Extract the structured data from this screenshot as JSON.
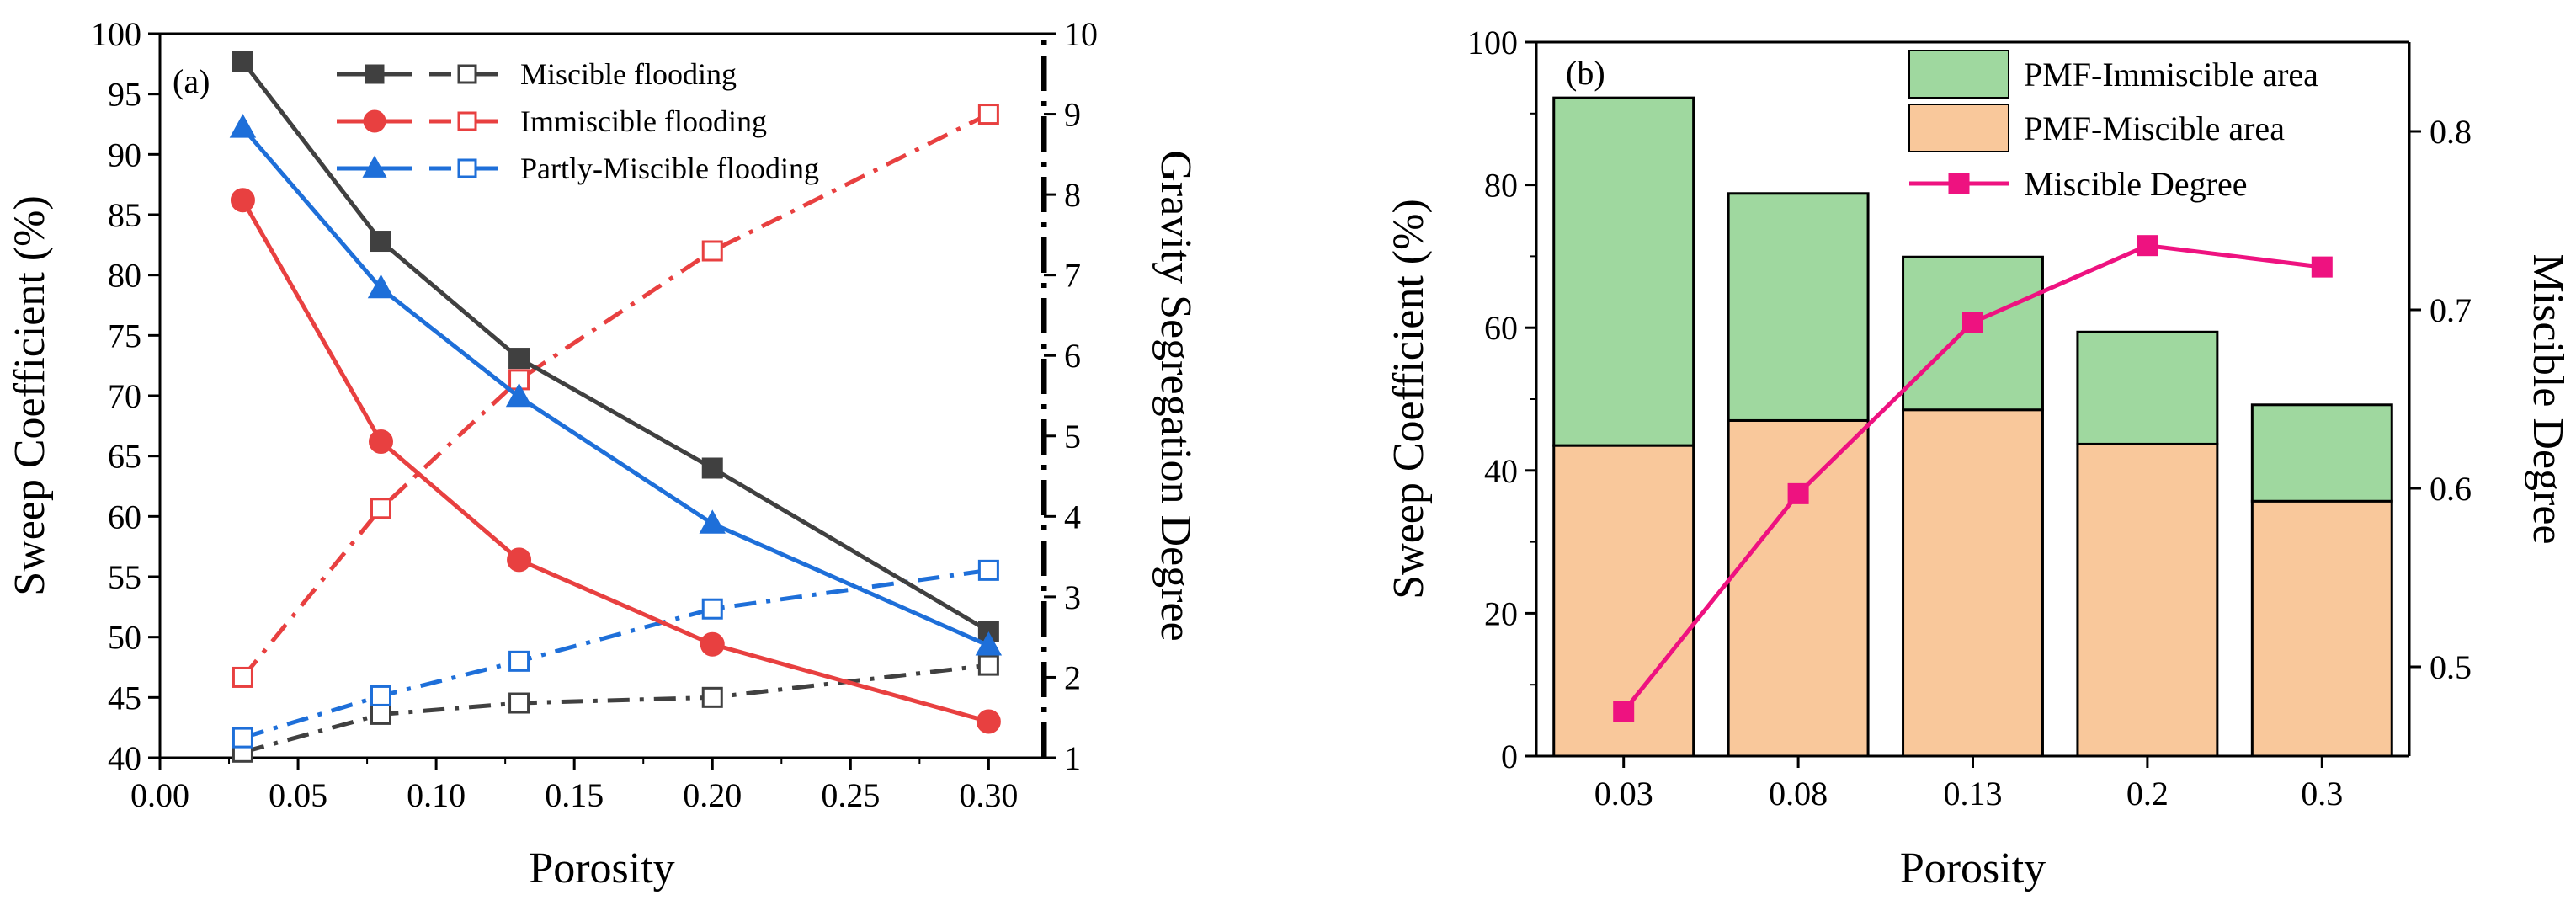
{
  "chart_data": [
    {
      "type": "line",
      "panel_label": "(a)",
      "xlabel": "Porosity",
      "ylabel": "Sweep Coefficient (%)",
      "y2label": "Gravity Segregation Degree",
      "xlim": [
        0.0,
        0.32
      ],
      "ylim": [
        40,
        100
      ],
      "y2lim": [
        1,
        10
      ],
      "xticks": [
        "0.00",
        "0.05",
        "0.10",
        "0.15",
        "0.20",
        "0.25",
        "0.30"
      ],
      "yticks": [
        "40",
        "45",
        "50",
        "55",
        "60",
        "65",
        "70",
        "75",
        "80",
        "85",
        "90",
        "95",
        "100"
      ],
      "y2ticks": [
        "1",
        "2",
        "3",
        "4",
        "5",
        "6",
        "7",
        "8",
        "9",
        "10"
      ],
      "x": [
        0.03,
        0.08,
        0.13,
        0.2,
        0.3
      ],
      "series": [
        {
          "name": "Miscible flooding",
          "color": "#404040",
          "marker": "square",
          "axis": "left",
          "values": [
            97.7,
            82.8,
            73.1,
            64.0,
            50.5
          ]
        },
        {
          "name": "Immiscible flooding",
          "color": "#e84040",
          "marker": "circle",
          "axis": "left",
          "values": [
            86.2,
            66.2,
            56.4,
            49.4,
            43.0
          ]
        },
        {
          "name": "Partly-Miscible flooding",
          "color": "#1e6fd9",
          "marker": "triangle",
          "axis": "left",
          "values": [
            92.2,
            78.9,
            69.9,
            59.4,
            49.3
          ]
        }
      ],
      "series_y2": [
        {
          "name": "Miscible flooding",
          "color": "#404040",
          "values": [
            1.07,
            1.54,
            1.68,
            1.75,
            2.15
          ]
        },
        {
          "name": "Immiscible flooding",
          "color": "#e84040",
          "values": [
            2.0,
            4.1,
            5.7,
            7.3,
            9.0
          ]
        },
        {
          "name": "Partly-Miscible flooding",
          "color": "#1e6fd9",
          "values": [
            1.25,
            1.77,
            2.2,
            2.85,
            3.33
          ]
        }
      ]
    },
    {
      "type": "bar",
      "panel_label": "(b)",
      "xlabel": "Porosity",
      "ylabel": "Sweep Coefficient (%)",
      "y2label": "Miscible Degree",
      "ylim": [
        0,
        100
      ],
      "y2lim": [
        0.45,
        0.85
      ],
      "yticks": [
        "0",
        "20",
        "40",
        "60",
        "80",
        "100"
      ],
      "y2ticks": [
        "0.5",
        "0.6",
        "0.7",
        "0.8"
      ],
      "categories": [
        "0.03",
        "0.08",
        "0.13",
        "0.2",
        "0.3"
      ],
      "series": [
        {
          "name": "PMF-Miscible area",
          "color": "#f9c89b",
          "values": [
            43.5,
            47.0,
            48.5,
            43.7,
            35.7
          ]
        },
        {
          "name": "PMF-Immiscible area",
          "color": "#9fd89f",
          "values": [
            48.7,
            31.8,
            21.4,
            15.7,
            13.5
          ]
        }
      ],
      "line_series": {
        "name": "Miscible Degree",
        "color": "#ee1280",
        "axis": "right",
        "values": [
          0.475,
          0.597,
          0.693,
          0.736,
          0.724
        ]
      }
    }
  ]
}
